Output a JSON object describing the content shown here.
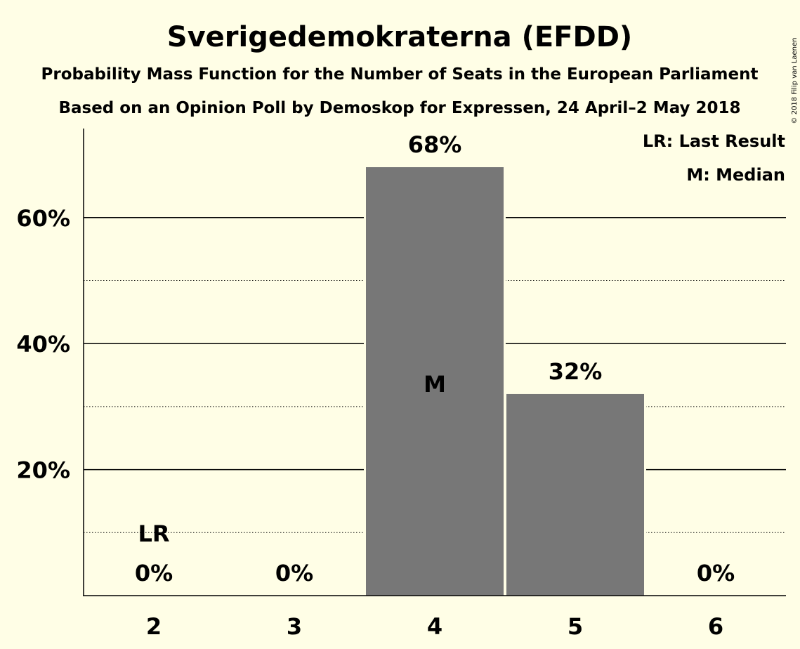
{
  "chart_data": {
    "type": "bar",
    "title": "Sverigedemokraterna (EFDD)",
    "subtitle1": "Probability Mass Function for the Number of Seats in the European Parliament",
    "subtitle2": "Based on an Opinion Poll by Demoskop for Expressen, 24 April–2 May 2018",
    "categories": [
      "2",
      "3",
      "4",
      "5",
      "6"
    ],
    "values": [
      0,
      0,
      68,
      32,
      0
    ],
    "value_labels": [
      "0%",
      "0%",
      "68%",
      "32%",
      "0%"
    ],
    "ylim": [
      0,
      74
    ],
    "y_major_ticks": [
      20,
      40,
      60
    ],
    "y_major_tick_labels": [
      "20%",
      "40%",
      "60%"
    ],
    "y_minor_gridlines": [
      10,
      30,
      50
    ],
    "bar_color": "#777777",
    "background_color": "#FFFEE6",
    "markers": [
      {
        "category": "2",
        "label": "LR"
      },
      {
        "category": "4",
        "label": "M"
      }
    ],
    "legend": {
      "placement": "top-right",
      "entries": [
        "LR: Last Result",
        "M: Median"
      ]
    },
    "copyright": "© 2018 Filip van Laenen"
  }
}
